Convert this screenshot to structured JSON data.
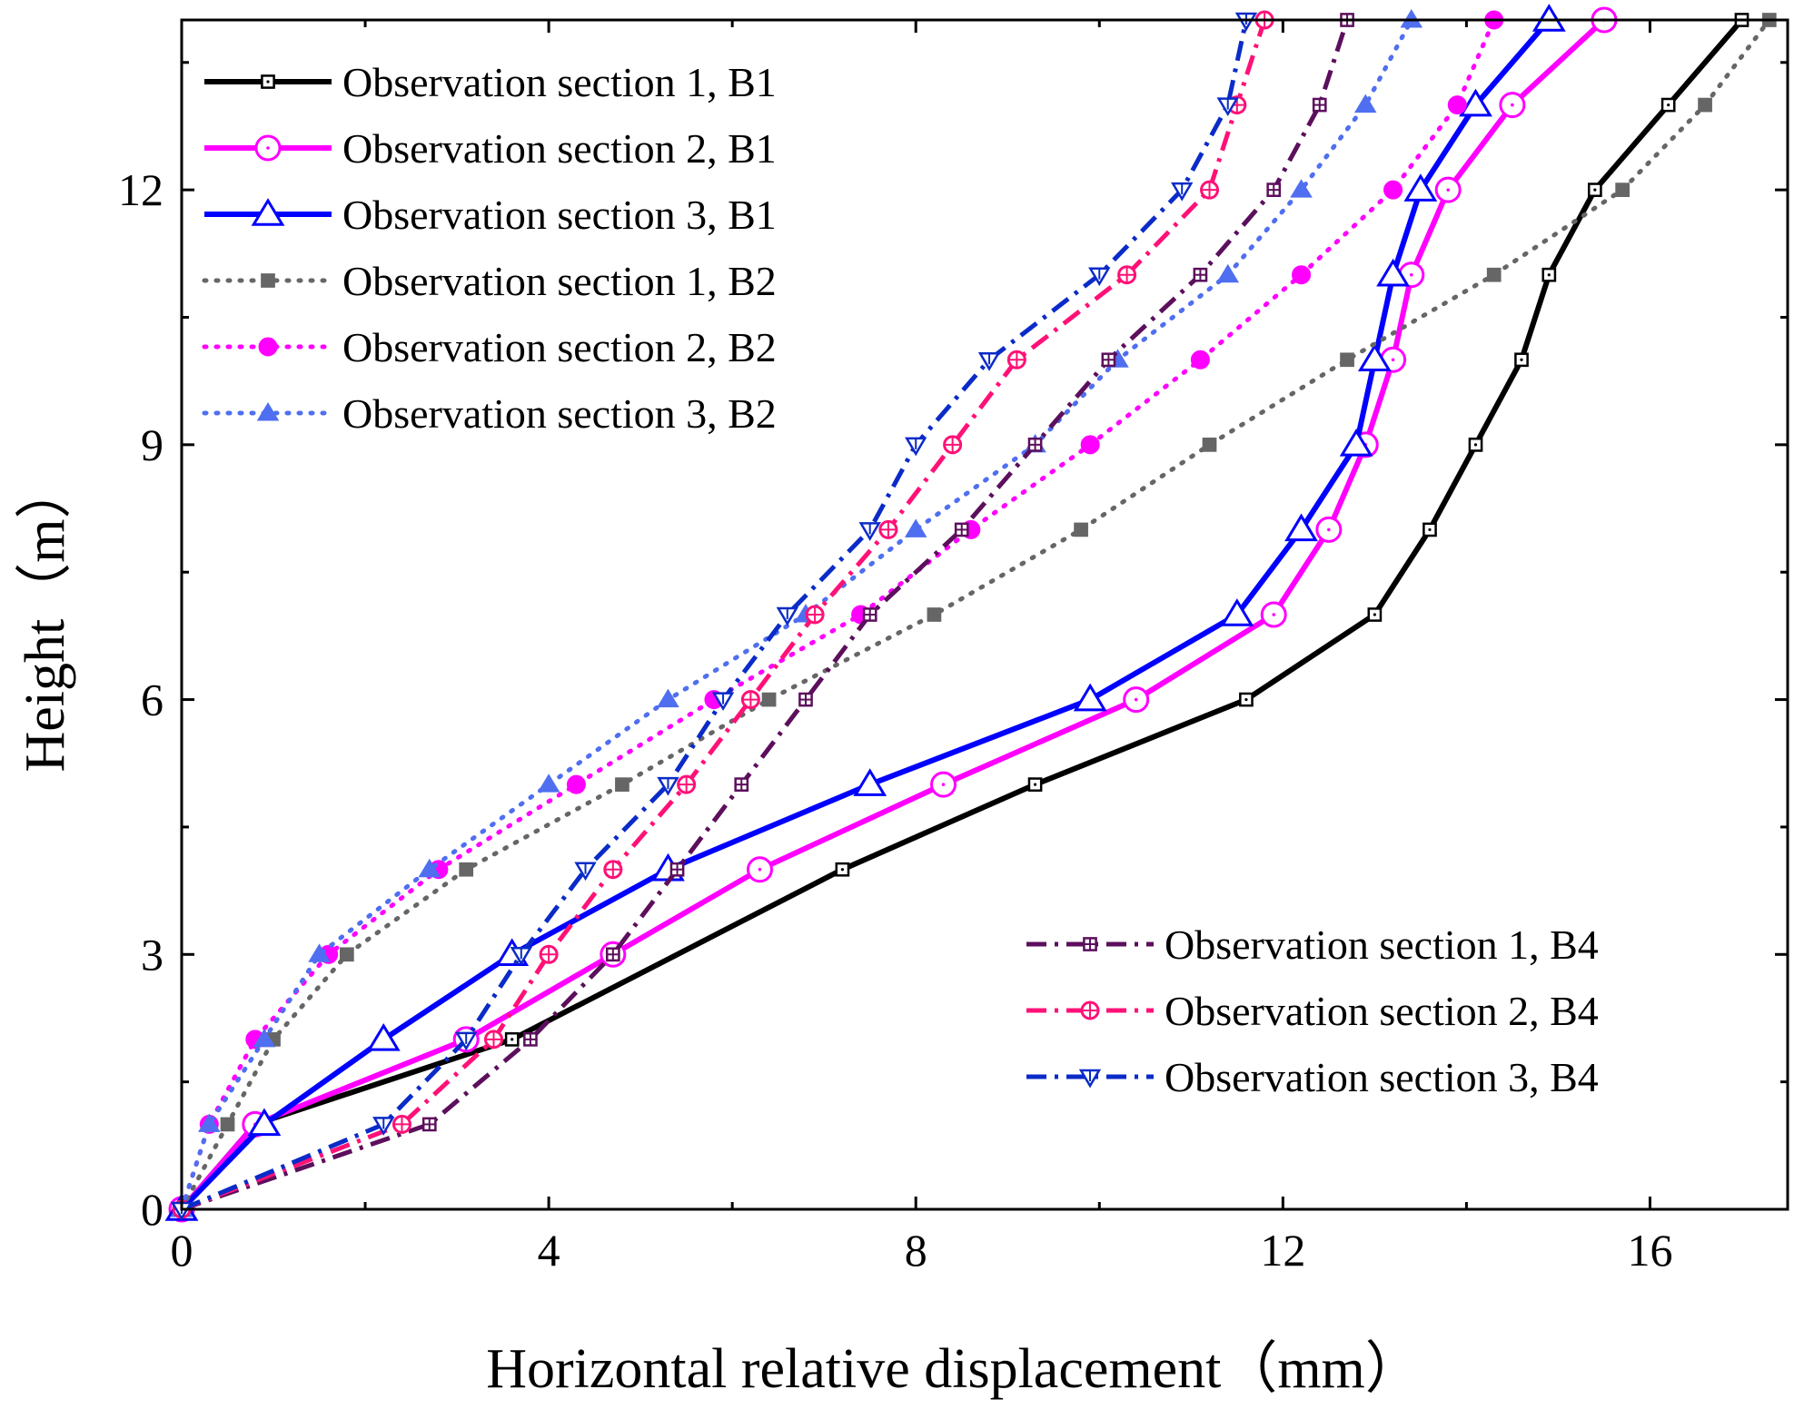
{
  "chart_data": {
    "type": "line",
    "xlabel": "Horizontal relative displacement（mm）",
    "ylabel": "Height（m）",
    "xlim": [
      0,
      17.5
    ],
    "ylim": [
      0,
      14
    ],
    "xticks": [
      "0",
      "4",
      "8",
      "12",
      "16"
    ],
    "yticks": [
      "0",
      "3",
      "6",
      "9",
      "12"
    ],
    "x_tick_values": [
      0,
      4,
      8,
      12,
      16
    ],
    "y_tick_values": [
      0,
      3,
      6,
      9,
      12
    ],
    "x_minor_values": [
      2,
      6,
      10,
      14
    ],
    "y_minor_values": [
      1.5,
      4.5,
      7.5,
      10.5,
      13.5
    ],
    "series": [
      {
        "name": "Observation section 1, B1",
        "color": "#000000",
        "style": "solid",
        "marker": "square-open",
        "legend": "left",
        "x": [
          0,
          0.8,
          3.6,
          7.2,
          9.3,
          11.6,
          13.0,
          13.6,
          14.1,
          14.6,
          14.9,
          15.4,
          16.2,
          17.0
        ],
        "y": [
          0,
          1,
          2,
          4,
          5,
          6,
          7,
          8,
          9,
          10,
          11,
          12,
          13,
          14
        ]
      },
      {
        "name": "Observation section 2, B1",
        "color": "#ff00ff",
        "style": "solid",
        "marker": "circle-open",
        "legend": "left",
        "x": [
          0,
          0.8,
          3.1,
          4.7,
          6.3,
          8.3,
          10.4,
          11.9,
          12.5,
          12.9,
          13.2,
          13.4,
          13.8,
          14.5,
          15.5
        ],
        "y": [
          0,
          1,
          2,
          3,
          4,
          5,
          6,
          7,
          8,
          9,
          10,
          11,
          12,
          13,
          14
        ]
      },
      {
        "name": "Observation section 3, B1",
        "color": "#0000ff",
        "style": "solid",
        "marker": "triangle-open",
        "legend": "left",
        "x": [
          0,
          0.9,
          2.2,
          3.6,
          5.3,
          7.5,
          9.9,
          11.5,
          12.2,
          12.8,
          13.0,
          13.2,
          13.5,
          14.1,
          14.9
        ],
        "y": [
          0,
          1,
          2,
          3,
          4,
          5,
          6,
          7,
          8,
          9,
          10,
          11,
          12,
          13,
          14
        ]
      },
      {
        "name": "Observation section 1, B2",
        "color": "#666666",
        "style": "dot",
        "marker": "square-filled",
        "legend": "left",
        "x": [
          0,
          0.5,
          1.0,
          1.8,
          3.1,
          4.8,
          6.4,
          8.2,
          9.8,
          11.2,
          12.7,
          14.3,
          15.7,
          16.6,
          17.3
        ],
        "y": [
          0,
          1,
          2,
          3,
          4,
          5,
          6,
          7,
          8,
          9,
          10,
          11,
          12,
          13,
          14
        ]
      },
      {
        "name": "Observation section 2, B2",
        "color": "#ff00ff",
        "style": "dot",
        "marker": "circle-filled",
        "legend": "left",
        "x": [
          0,
          0.3,
          0.8,
          1.6,
          2.8,
          4.3,
          5.8,
          7.4,
          8.6,
          9.9,
          11.1,
          12.2,
          13.2,
          13.9,
          14.3
        ],
        "y": [
          0,
          1,
          2,
          3,
          4,
          5,
          6,
          7,
          8,
          9,
          10,
          11,
          12,
          13,
          14
        ]
      },
      {
        "name": "Observation section 3, B2",
        "color": "#4f6ff0",
        "style": "dot",
        "marker": "triangle-filled",
        "legend": "left",
        "x": [
          0,
          0.3,
          0.9,
          1.5,
          2.7,
          4.0,
          5.3,
          6.8,
          8.0,
          9.3,
          10.2,
          11.4,
          12.2,
          12.9,
          13.4
        ],
        "y": [
          0,
          1,
          2,
          3,
          4,
          5,
          6,
          7,
          8,
          9,
          10,
          11,
          12,
          13,
          14
        ]
      },
      {
        "name": "Observation section 1, B4",
        "color": "#5c0f5c",
        "style": "dashdot",
        "marker": "square-cross",
        "legend": "right",
        "x": [
          0,
          2.7,
          3.8,
          4.7,
          5.4,
          6.1,
          6.8,
          7.5,
          8.5,
          9.3,
          10.1,
          11.1,
          11.9,
          12.4,
          12.7
        ],
        "y": [
          0,
          1,
          2,
          3,
          4,
          5,
          6,
          7,
          8,
          9,
          10,
          11,
          12,
          13,
          14
        ]
      },
      {
        "name": "Observation section 2, B4",
        "color": "#ff1177",
        "style": "dashdot",
        "marker": "circle-cross",
        "legend": "right",
        "x": [
          0,
          2.4,
          3.4,
          4.0,
          4.7,
          5.5,
          6.2,
          6.9,
          7.7,
          8.4,
          9.1,
          10.3,
          11.2,
          11.5,
          11.8
        ],
        "y": [
          0,
          1,
          2,
          3,
          4,
          5,
          6,
          7,
          8,
          9,
          10,
          11,
          12,
          13,
          14
        ]
      },
      {
        "name": "Observation section 3, B4",
        "color": "#0a2bc8",
        "style": "dashdot",
        "marker": "triangle-down-cross",
        "legend": "right",
        "x": [
          0,
          2.2,
          3.1,
          3.7,
          4.4,
          5.3,
          5.9,
          6.6,
          7.5,
          8.0,
          8.8,
          10.0,
          10.9,
          11.4,
          11.6
        ],
        "y": [
          0,
          1,
          2,
          3,
          4,
          5,
          6,
          7,
          8,
          9,
          10,
          11,
          12,
          13,
          14
        ]
      }
    ]
  }
}
